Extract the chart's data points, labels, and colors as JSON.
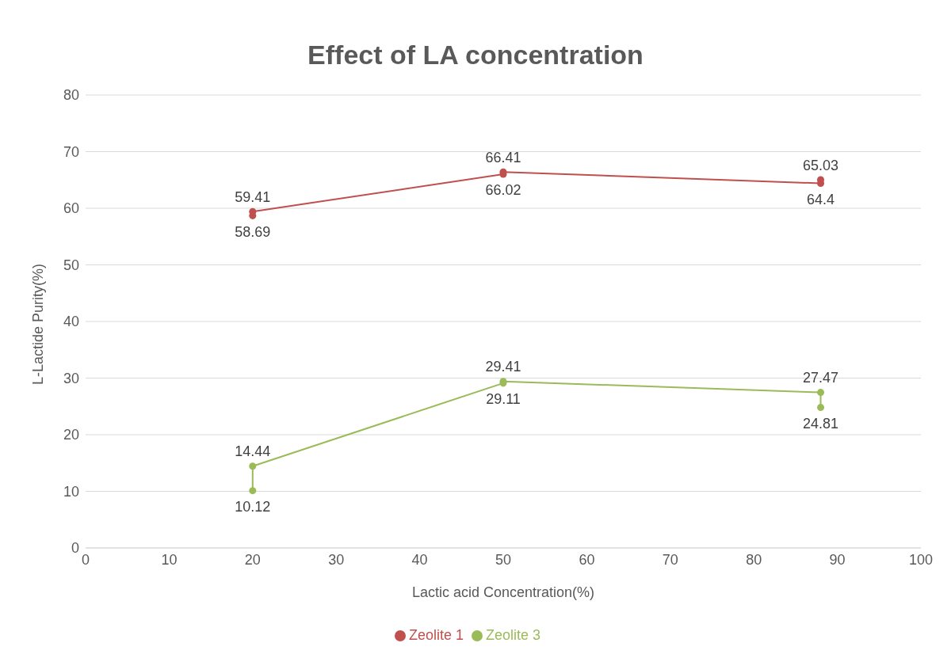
{
  "chart_data": {
    "type": "line",
    "title": "Effect of LA concentration",
    "xlabel": "Lactic acid Concentration(%)",
    "ylabel": "L-Lactide Purity(%)",
    "series": [
      {
        "name": "Zeolite 1",
        "color": "#c0504d",
        "x": [
          20,
          20,
          50,
          50,
          88,
          88
        ],
        "values": [
          58.69,
          59.41,
          66.02,
          66.41,
          64.4,
          65.03
        ]
      },
      {
        "name": "Zeolite 3",
        "color": "#9bbb59",
        "x": [
          20,
          20,
          50,
          50,
          88,
          88
        ],
        "values": [
          10.12,
          14.44,
          29.11,
          29.41,
          27.47,
          24.81
        ]
      }
    ],
    "xlim": [
      0,
      100
    ],
    "xticks": [
      0,
      10,
      20,
      30,
      40,
      50,
      60,
      70,
      80,
      90,
      100
    ],
    "ylim": [
      0,
      80
    ],
    "yticks": [
      0,
      10,
      20,
      30,
      40,
      50,
      60,
      70,
      80
    ],
    "grid": "y",
    "legend": "bottom",
    "marker": "circle",
    "data_labels": true
  }
}
